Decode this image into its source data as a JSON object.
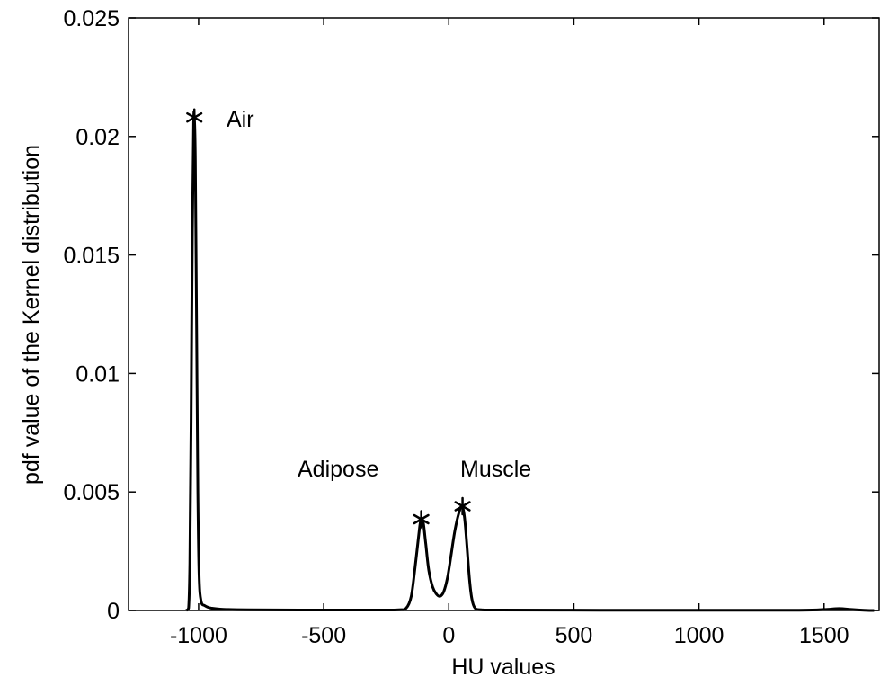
{
  "chart_data": {
    "type": "line",
    "title": "",
    "xlabel": "HU values",
    "ylabel": "pdf value of the Kernel distribution",
    "xlim": [
      -1280,
      1720
    ],
    "ylim": [
      0,
      0.025
    ],
    "grid": false,
    "legend": "none",
    "x_ticks": [
      {
        "value": -1000,
        "label": "-1000"
      },
      {
        "value": -500,
        "label": "-500"
      },
      {
        "value": 0,
        "label": "0"
      },
      {
        "value": 500,
        "label": "500"
      },
      {
        "value": 1000,
        "label": "1000"
      },
      {
        "value": 1500,
        "label": "1500"
      }
    ],
    "y_ticks": [
      {
        "value": 0,
        "label": "0"
      },
      {
        "value": 0.005,
        "label": "0.005"
      },
      {
        "value": 0.01,
        "label": "0.01"
      },
      {
        "value": 0.015,
        "label": "0.015"
      },
      {
        "value": 0.02,
        "label": "0.02"
      },
      {
        "value": 0.025,
        "label": "0.025"
      }
    ],
    "series": [
      {
        "color": "#000000",
        "points": [
          [
            -1050,
            0
          ],
          [
            -1040,
            0.0001
          ],
          [
            -1035,
            0.002
          ],
          [
            -1030,
            0.008
          ],
          [
            -1025,
            0.016
          ],
          [
            -1020,
            0.0205
          ],
          [
            -1017,
            0.0208
          ],
          [
            -1013,
            0.019
          ],
          [
            -1008,
            0.012
          ],
          [
            -1003,
            0.005
          ],
          [
            -998,
            0.0015
          ],
          [
            -990,
            0.0004
          ],
          [
            -975,
            0.0002
          ],
          [
            -950,
            0.0001
          ],
          [
            -900,
            5e-05
          ],
          [
            -800,
            3e-05
          ],
          [
            -600,
            2e-05
          ],
          [
            -300,
            2e-05
          ],
          [
            -200,
            3e-05
          ],
          [
            -170,
            0.0001
          ],
          [
            -150,
            0.0006
          ],
          [
            -135,
            0.0018
          ],
          [
            -120,
            0.0032
          ],
          [
            -112,
            0.0038
          ],
          [
            -102,
            0.0037
          ],
          [
            -92,
            0.0028
          ],
          [
            -80,
            0.0017
          ],
          [
            -65,
            0.001
          ],
          [
            -50,
            0.0007
          ],
          [
            -35,
            0.0006
          ],
          [
            -20,
            0.0008
          ],
          [
            -5,
            0.0014
          ],
          [
            10,
            0.0024
          ],
          [
            25,
            0.0034
          ],
          [
            40,
            0.0041
          ],
          [
            52,
            0.0044
          ],
          [
            62,
            0.004
          ],
          [
            72,
            0.0028
          ],
          [
            82,
            0.0014
          ],
          [
            92,
            0.0005
          ],
          [
            105,
            0.0001
          ],
          [
            130,
            3e-05
          ],
          [
            200,
            2e-05
          ],
          [
            600,
            1e-05
          ],
          [
            1000,
            1e-05
          ],
          [
            1400,
            1e-05
          ],
          [
            1500,
            4e-05
          ],
          [
            1560,
            8e-05
          ],
          [
            1610,
            4e-05
          ],
          [
            1660,
            1e-05
          ],
          [
            1700,
            0
          ]
        ]
      }
    ],
    "markers": [
      {
        "x": -1017,
        "y": 0.0208,
        "symbol": "*",
        "label": "Air"
      },
      {
        "x": -110,
        "y": 0.00385,
        "symbol": "*",
        "label": "Adipose"
      },
      {
        "x": 55,
        "y": 0.0044,
        "symbol": "*",
        "label": "Muscle"
      }
    ]
  }
}
